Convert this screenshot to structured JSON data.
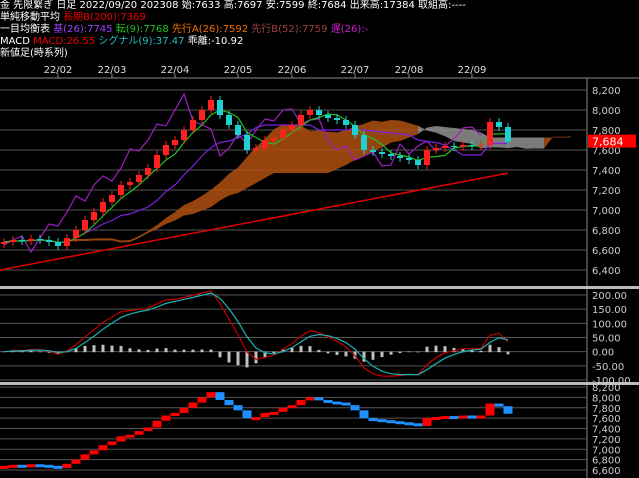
{
  "header": {
    "line1": "金 先限繋ぎ 日足 2022/09/20 202308 始:7633 高:7697 安:7599 終:7684 出来高:17384 取組高:----",
    "sma_label": "単純移動平均",
    "sma_long": "長期B(200):7369",
    "ichimoku_label": "一目均衡表",
    "kijun": "基(26):7745",
    "tenkan": "転(9):7768",
    "senkouA": "先行A(26):7592",
    "senkouB": "先行B(52):7759",
    "chikou": "遅(26):-",
    "macd_label": "MACD",
    "macd": "MACD:26.55",
    "signal": "シグナル(9):37.47",
    "divergence": "乖離:-10.92",
    "shinne_label": "新値足(時系列)"
  },
  "colors": {
    "up": "#ff2020",
    "down": "#20d0d0",
    "sma": "#e00000",
    "tenkan": "#20c020",
    "kijun": "#8020e0",
    "chikou": "#a020c0",
    "cloud_up": "#b05010",
    "cloud_down": "#909090",
    "macd": "#c00000",
    "signal": "#20b0b0",
    "hist": "#c0c0c0",
    "new_up": "#ff0000",
    "new_down": "#1e90ff",
    "last_price_bg": "#ff0000"
  },
  "chart_data": {
    "type": "candlestick",
    "month_ticks": [
      "22/02",
      "22/03",
      "22/04",
      "22/05",
      "22/06",
      "22/07",
      "22/08",
      "22/09"
    ],
    "month_tick_index": [
      6,
      12,
      19,
      26,
      32,
      39,
      45,
      52
    ],
    "closes": [
      6680,
      6700,
      6690,
      6710,
      6700,
      6680,
      6640,
      6720,
      6800,
      6900,
      6980,
      7080,
      7150,
      7250,
      7280,
      7350,
      7420,
      7550,
      7650,
      7700,
      7800,
      7900,
      8000,
      8100,
      7950,
      7850,
      7750,
      7600,
      7620,
      7700,
      7720,
      7800,
      7850,
      7950,
      8000,
      7950,
      7920,
      7900,
      7850,
      7750,
      7600,
      7580,
      7560,
      7540,
      7520,
      7500,
      7450,
      7600,
      7620,
      7640,
      7630,
      7650,
      7640,
      7650,
      7880,
      7830,
      7684
    ],
    "sma200_range": [
      6400,
      7369
    ],
    "last_price": "7,684",
    "price_axis": {
      "ylim": [
        6300,
        8300
      ],
      "ticks": [
        "8,200",
        "8,000",
        "7,800",
        "7,600",
        "7,400",
        "7,200",
        "7,000",
        "6,800",
        "6,600",
        "6,400"
      ]
    },
    "macd_axis": {
      "ylim": [
        -110,
        215
      ],
      "ticks": [
        "200.00",
        "150.00",
        "100.00",
        "50.00",
        "0.00",
        "-50.00",
        "-100.00"
      ]
    },
    "newvalue_axis": {
      "ylim": [
        6550,
        8250
      ],
      "ticks": [
        "8,200",
        "8,000",
        "7,800",
        "7,600",
        "7,400",
        "7,200",
        "7,000",
        "6,800",
        "6,600"
      ]
    }
  }
}
